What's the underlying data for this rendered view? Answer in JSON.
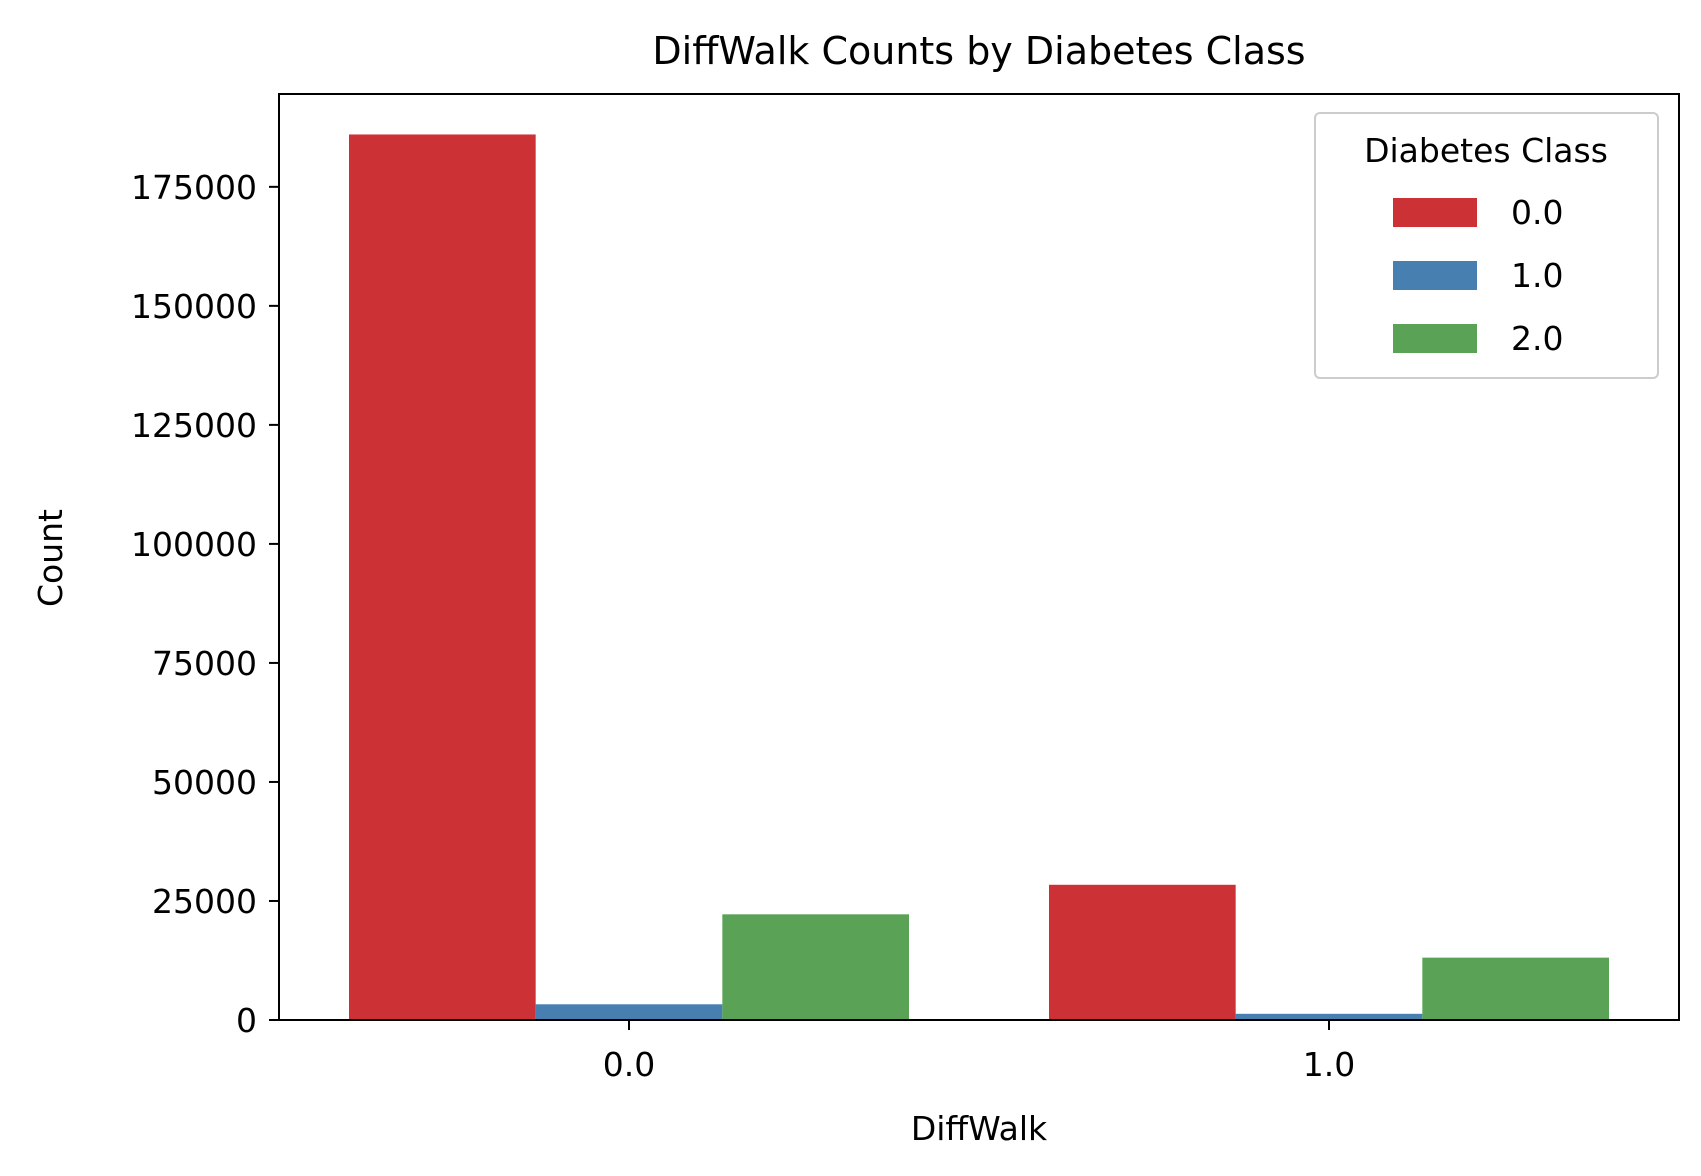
{
  "chart_data": {
    "type": "bar",
    "title": "DiffWalk Counts by Diabetes Class",
    "xlabel": "DiffWalk",
    "ylabel": "Count",
    "categories": [
      "0.0",
      "1.0"
    ],
    "ylim": [
      0,
      194500
    ],
    "yticks": [
      0,
      25000,
      50000,
      75000,
      100000,
      125000,
      150000,
      175000
    ],
    "ytick_labels": [
      "0",
      "25000",
      "50000",
      "75000",
      "100000",
      "125000",
      "150000",
      "175000"
    ],
    "legend": {
      "title": "Diabetes Class",
      "placement": "top-right"
    },
    "grid": false,
    "series": [
      {
        "name": "0.0",
        "color": "#cc3135",
        "values": [
          186000,
          28400
        ]
      },
      {
        "name": "1.0",
        "color": "#467fb0",
        "values": [
          3300,
          1300
        ]
      },
      {
        "name": "2.0",
        "color": "#5aa356",
        "values": [
          22200,
          13100
        ]
      }
    ]
  }
}
